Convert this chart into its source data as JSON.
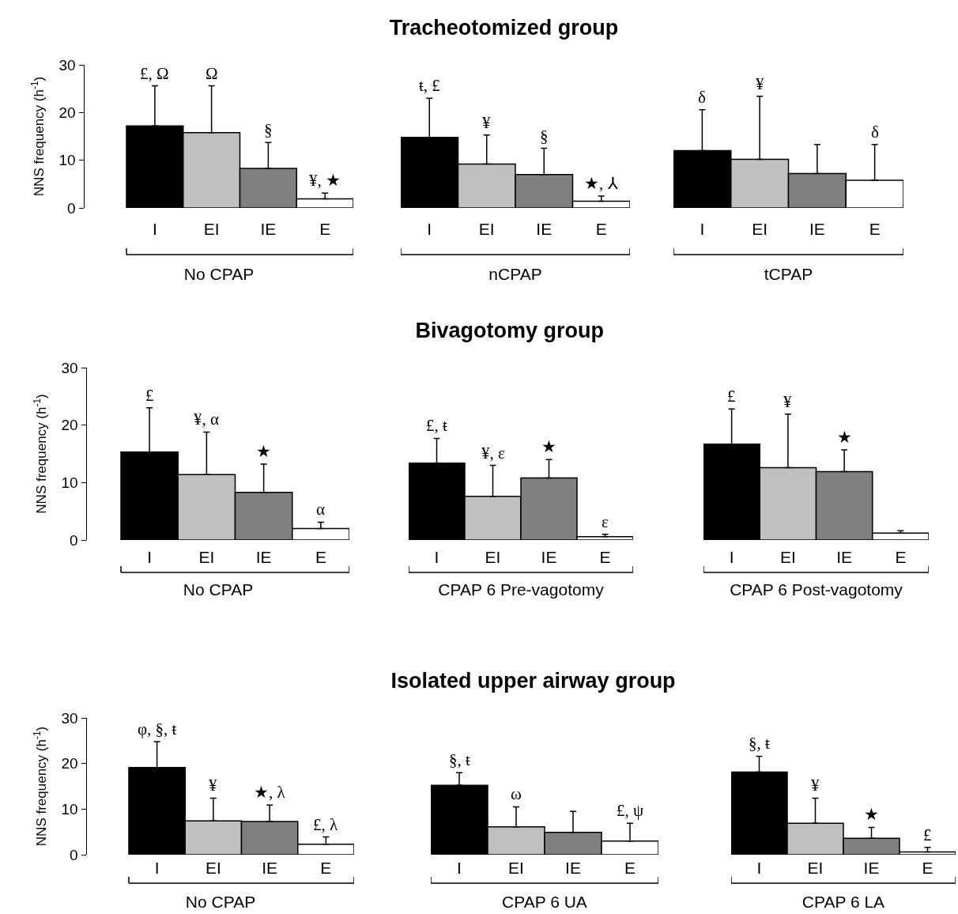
{
  "chart_data": [
    {
      "type": "bar",
      "categories": [
        "I",
        "EI",
        "IE",
        "E"
      ],
      "values": [
        17.2,
        15.8,
        8.3,
        1.9
      ],
      "colors": [
        "#000000",
        "#c0c0c0",
        "#808080",
        "#ffffff"
      ],
      "errors": [
        [
          17.2,
          25.6
        ],
        [
          15.8,
          25.6
        ],
        [
          8.3,
          13.7
        ],
        [
          1.9,
          3.1
        ]
      ],
      "ylim": [
        0,
        30
      ],
      "yticks": [
        0,
        10,
        20,
        30
      ],
      "ylabel": "NNS frequency (h$^{-1}$)",
      "xlabel": "No CPAP",
      "annotations": [
        {
          "text": "£, Ω",
          "x": "I",
          "y": 25.6
        },
        {
          "text": "Ω",
          "x": "EI",
          "y": 25.6
        },
        {
          "text": "§",
          "x": "IE",
          "y": 13.7
        },
        {
          "text": "¥, ★",
          "x": "E",
          "y": 3.1
        }
      ]
    },
    {
      "type": "bar",
      "title": "Tracheotomized group",
      "categories": [
        "I",
        "EI",
        "IE",
        "E"
      ],
      "values": [
        14.8,
        9.2,
        7.0,
        1.4
      ],
      "colors": [
        "#000000",
        "#c0c0c0",
        "#808080",
        "#ffffff"
      ],
      "errors": [
        [
          14.8,
          23.0
        ],
        [
          9.2,
          15.3
        ],
        [
          7.0,
          12.5
        ],
        [
          1.4,
          2.5
        ]
      ],
      "ylim": [
        0,
        30
      ],
      "yticks": [
        0,
        10,
        20,
        30
      ],
      "tick_labels": "x",
      "xlabel": "nCPAP",
      "annotations": [
        {
          "text": "ŧ, £",
          "x": "I",
          "y": 23.0
        },
        {
          "text": "¥",
          "x": "EI",
          "y": 15.3
        },
        {
          "text": "§",
          "x": "IE",
          "y": 12.5
        },
        {
          "text": "★, ⅄",
          "x": "E",
          "y": 2.5
        }
      ]
    },
    {
      "type": "bar",
      "categories": [
        "I",
        "EI",
        "IE",
        "E"
      ],
      "values": [
        12.0,
        10.2,
        7.2,
        5.8
      ],
      "colors": [
        "#000000",
        "#c0c0c0",
        "#808080",
        "#ffffff"
      ],
      "errors": [
        [
          12.0,
          20.6
        ],
        [
          10.2,
          23.4
        ],
        [
          7.2,
          13.3
        ],
        [
          5.8,
          13.3
        ]
      ],
      "ylim": [
        0,
        30
      ],
      "yticks": [
        0,
        10,
        20,
        30
      ],
      "tick_labels": "x",
      "xlabel": "tCPAP",
      "annotations": [
        {
          "text": "δ",
          "x": "I",
          "y": 20.6
        },
        {
          "text": "¥",
          "x": "EI",
          "y": 23.4
        },
        {
          "text": "δ",
          "x": "E",
          "y": 13.3
        }
      ]
    },
    {
      "type": "bar",
      "categories": [
        "I",
        "EI",
        "IE",
        "E"
      ],
      "values": [
        15.3,
        11.4,
        8.3,
        2.0
      ],
      "colors": [
        "#000000",
        "#c0c0c0",
        "#808080",
        "#ffffff"
      ],
      "errors": [
        [
          15.3,
          23.0
        ],
        [
          11.4,
          18.8
        ],
        [
          8.3,
          13.2
        ],
        [
          2.0,
          3.1
        ]
      ],
      "ylim": [
        0,
        30
      ],
      "yticks": [
        0,
        10,
        20,
        30
      ],
      "ylabel": "NNS frequency (h$^{-1}$)",
      "xlabel": "No CPAP",
      "annotations": [
        {
          "text": "£",
          "x": "I",
          "y": 23.0
        },
        {
          "text": "¥, α",
          "x": "EI",
          "y": 18.8
        },
        {
          "text": "★",
          "x": "IE",
          "y": 13.2
        },
        {
          "text": "α",
          "x": "E",
          "y": 3.1
        }
      ]
    },
    {
      "type": "bar",
      "title": "Bivagotomy group",
      "categories": [
        "I",
        "EI",
        "IE",
        "E"
      ],
      "values": [
        13.4,
        7.6,
        10.8,
        0.6
      ],
      "colors": [
        "#000000",
        "#c0c0c0",
        "#808080",
        "#ffffff"
      ],
      "errors": [
        [
          13.4,
          17.7
        ],
        [
          7.6,
          13.0
        ],
        [
          10.8,
          14.0
        ],
        [
          0.6,
          1.0
        ]
      ],
      "ylim": [
        0,
        30
      ],
      "yticks": [
        0,
        10,
        20,
        30
      ],
      "tick_labels": "x",
      "xlabel": "CPAP 6 Pre-vagotomy",
      "annotations": [
        {
          "text": "£, ŧ",
          "x": "I",
          "y": 17.7
        },
        {
          "text": "¥, ε",
          "x": "EI",
          "y": 13.0
        },
        {
          "text": "★",
          "x": "IE",
          "y": 14.0
        },
        {
          "text": "ε",
          "x": "E",
          "y": 1.0
        }
      ]
    },
    {
      "type": "bar",
      "categories": [
        "I",
        "EI",
        "IE",
        "E"
      ],
      "values": [
        16.7,
        12.6,
        11.9,
        1.2
      ],
      "colors": [
        "#000000",
        "#c0c0c0",
        "#808080",
        "#ffffff"
      ],
      "errors": [
        [
          16.7,
          22.8
        ],
        [
          12.6,
          21.9
        ],
        [
          11.9,
          15.7
        ],
        [
          1.2,
          1.6
        ]
      ],
      "ylim": [
        0,
        30
      ],
      "yticks": [
        0,
        10,
        20,
        30
      ],
      "tick_labels": "x",
      "xlabel": "CPAP 6 Post-vagotomy",
      "annotations": [
        {
          "text": "£",
          "x": "I",
          "y": 22.8
        },
        {
          "text": "¥",
          "x": "EI",
          "y": 21.9
        },
        {
          "text": "★",
          "x": "IE",
          "y": 15.7
        }
      ]
    },
    {
      "type": "bar",
      "categories": [
        "I",
        "EI",
        "IE",
        "E"
      ],
      "values": [
        19.1,
        7.4,
        7.3,
        2.3
      ],
      "colors": [
        "#000000",
        "#c0c0c0",
        "#808080",
        "#ffffff"
      ],
      "errors": [
        [
          19.1,
          24.8
        ],
        [
          7.4,
          12.4
        ],
        [
          7.3,
          10.9
        ],
        [
          2.3,
          3.9
        ]
      ],
      "ylim": [
        0,
        30
      ],
      "yticks": [
        0,
        10,
        20,
        30
      ],
      "ylabel": "NNS frequency (h$^{-1}$)",
      "xlabel": "No CPAP",
      "annotations": [
        {
          "text": "φ, §, ŧ",
          "x": "I",
          "y": 24.8
        },
        {
          "text": "¥",
          "x": "EI",
          "y": 12.4
        },
        {
          "text": "★, λ",
          "x": "IE",
          "y": 10.9
        },
        {
          "text": "£, λ",
          "x": "E",
          "y": 3.9
        }
      ]
    },
    {
      "type": "bar",
      "title": "Isolated upper airway group",
      "categories": [
        "I",
        "EI",
        "IE",
        "E"
      ],
      "values": [
        15.2,
        6.1,
        4.9,
        3.0
      ],
      "colors": [
        "#000000",
        "#c0c0c0",
        "#808080",
        "#ffffff"
      ],
      "errors": [
        [
          15.2,
          18.0
        ],
        [
          6.1,
          10.5
        ],
        [
          4.9,
          9.5
        ],
        [
          3.0,
          6.9
        ]
      ],
      "ylim": [
        0,
        30
      ],
      "yticks": [
        0,
        10,
        20,
        30
      ],
      "tick_labels": "x",
      "xlabel": "CPAP 6 UA",
      "annotations": [
        {
          "text": "§, ŧ",
          "x": "I",
          "y": 18.0
        },
        {
          "text": "ω",
          "x": "EI",
          "y": 10.5
        },
        {
          "text": "£, ψ",
          "x": "E",
          "y": 6.9
        }
      ]
    },
    {
      "type": "bar",
      "categories": [
        "I",
        "EI",
        "IE",
        "E"
      ],
      "values": [
        18.1,
        6.9,
        3.6,
        0.6
      ],
      "colors": [
        "#000000",
        "#c0c0c0",
        "#808080",
        "#ffffff"
      ],
      "errors": [
        [
          18.1,
          21.6
        ],
        [
          6.9,
          12.4
        ],
        [
          3.6,
          6.0
        ],
        [
          0.6,
          1.6
        ]
      ],
      "ylim": [
        0,
        30
      ],
      "yticks": [
        0,
        10,
        20,
        30
      ],
      "tick_labels": "x",
      "xlabel": "CPAP 6 LA",
      "annotations": [
        {
          "text": "§, ŧ",
          "x": "I",
          "y": 21.6
        },
        {
          "text": "¥",
          "x": "EI",
          "y": 12.4
        },
        {
          "text": "★",
          "x": "IE",
          "y": 6.0
        },
        {
          "text": "£",
          "x": "E",
          "y": 1.6
        }
      ]
    }
  ]
}
